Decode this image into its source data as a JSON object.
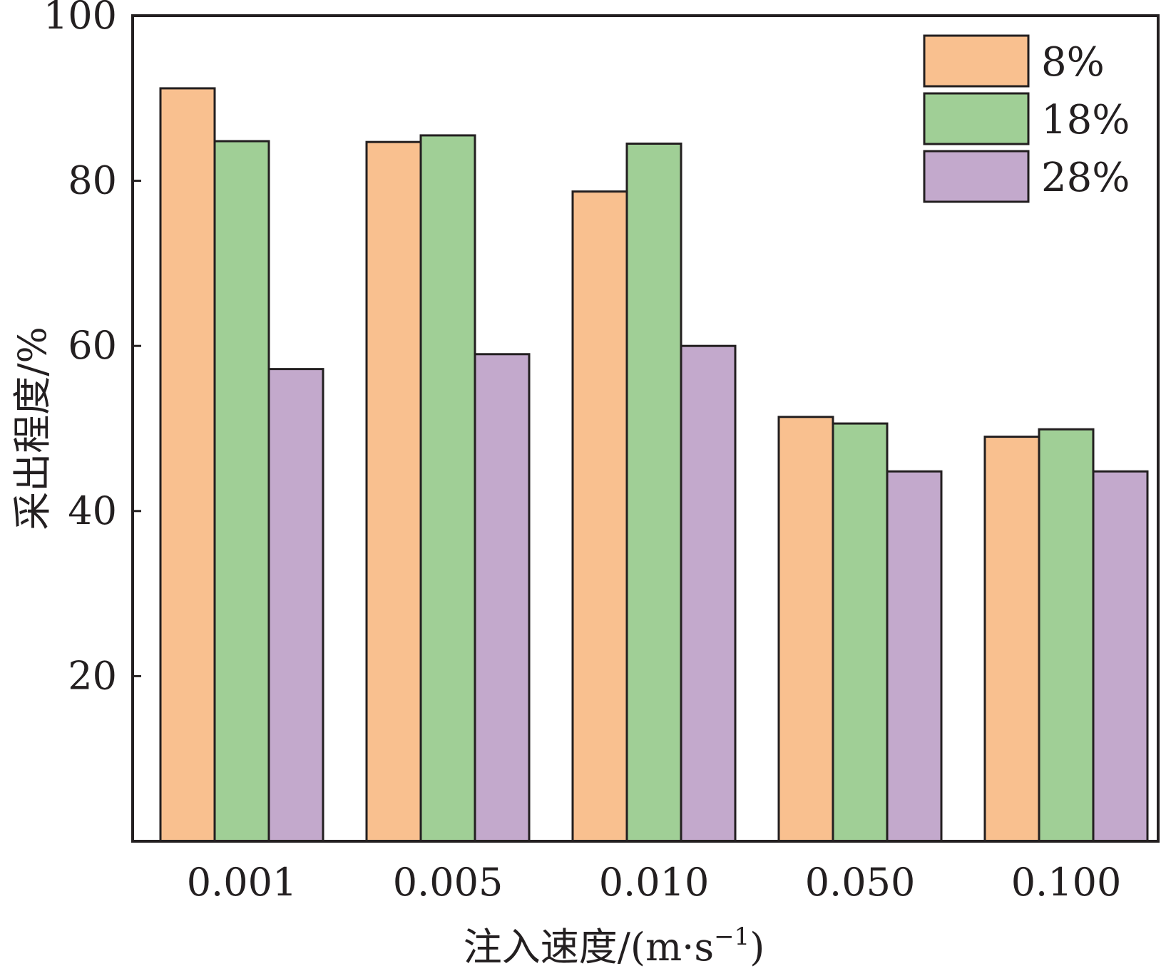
{
  "chart_data": {
    "type": "bar",
    "title": "",
    "xlabel": "注入速度/(m·s",
    "xlabel_superscript": "−1",
    "xlabel_close": ")",
    "ylabel": "采出程度/%",
    "categories": [
      "0.001",
      "0.005",
      "0.010",
      "0.050",
      "0.100"
    ],
    "series": [
      {
        "name": "8%",
        "color": "#f9c08f",
        "values": [
          91.2,
          84.7,
          78.7,
          51.4,
          49.0
        ]
      },
      {
        "name": "18%",
        "color": "#a0cf96",
        "values": [
          84.8,
          85.5,
          84.5,
          50.6,
          49.9
        ]
      },
      {
        "name": "28%",
        "color": "#c3a9cc",
        "values": [
          57.2,
          59.0,
          60.0,
          44.8,
          44.8
        ]
      }
    ],
    "ylim": [
      0,
      100
    ],
    "yticks": [
      "20",
      "40",
      "60",
      "80",
      "100"
    ],
    "ytick_values": [
      20,
      40,
      60,
      80,
      100
    ],
    "grid": false,
    "legend_position": "top-right"
  }
}
